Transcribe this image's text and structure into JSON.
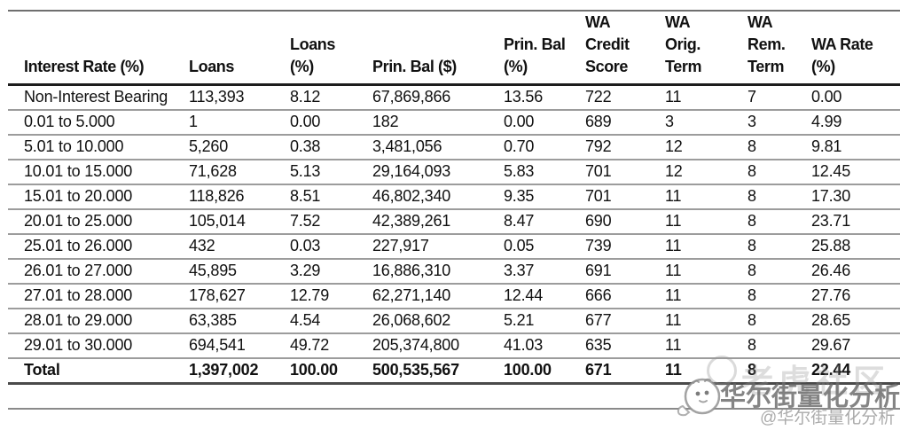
{
  "table": {
    "columns": [
      {
        "label": "Interest Rate (%)"
      },
      {
        "label": "Loans"
      },
      {
        "label": "Loans\n(%)"
      },
      {
        "label": "Prin. Bal ($)"
      },
      {
        "label": "Prin. Bal\n(%)"
      },
      {
        "label": "WA\nCredit\nScore"
      },
      {
        "label": "WA\nOrig.\nTerm"
      },
      {
        "label": "WA\nRem.\nTerm"
      },
      {
        "label": "WA Rate\n(%)"
      }
    ],
    "rows": [
      {
        "cells": [
          "Non-Interest Bearing",
          "113,393",
          "8.12",
          "67,869,866",
          "13.56",
          "722",
          "11",
          "7",
          "0.00"
        ]
      },
      {
        "cells": [
          "0.01 to 5.000",
          "1",
          "0.00",
          "182",
          "0.00",
          "689",
          "3",
          "3",
          "4.99"
        ]
      },
      {
        "cells": [
          "5.01 to 10.000",
          "5,260",
          "0.38",
          "3,481,056",
          "0.70",
          "792",
          "12",
          "8",
          "9.81"
        ]
      },
      {
        "cells": [
          "10.01 to 15.000",
          "71,628",
          "5.13",
          "29,164,093",
          "5.83",
          "701",
          "12",
          "8",
          "12.45"
        ]
      },
      {
        "cells": [
          "15.01 to 20.000",
          "118,826",
          "8.51",
          "46,802,340",
          "9.35",
          "701",
          "11",
          "8",
          "17.30"
        ]
      },
      {
        "cells": [
          "20.01 to 25.000",
          "105,014",
          "7.52",
          "42,389,261",
          "8.47",
          "690",
          "11",
          "8",
          "23.71"
        ]
      },
      {
        "cells": [
          "25.01 to 26.000",
          "432",
          "0.03",
          "227,917",
          "0.05",
          "739",
          "11",
          "8",
          "25.88"
        ]
      },
      {
        "cells": [
          "26.01 to 27.000",
          "45,895",
          "3.29",
          "16,886,310",
          "3.37",
          "691",
          "11",
          "8",
          "26.46"
        ]
      },
      {
        "cells": [
          "27.01 to 28.000",
          "178,627",
          "12.79",
          "62,271,140",
          "12.44",
          "666",
          "11",
          "8",
          "27.76"
        ]
      },
      {
        "cells": [
          "28.01 to 29.000",
          "63,385",
          "4.54",
          "26,068,602",
          "5.21",
          "677",
          "11",
          "8",
          "28.65"
        ]
      },
      {
        "cells": [
          "29.01 to 30.000",
          "694,541",
          "49.72",
          "205,374,800",
          "41.03",
          "635",
          "11",
          "8",
          "29.67"
        ]
      }
    ],
    "total_row": {
      "cells": [
        "Total",
        "1,397,002",
        "100.00",
        "500,535,567",
        "100.00",
        "671",
        "11",
        "8",
        "22.44"
      ]
    }
  },
  "watermark": {
    "main_text": "华尔街量化分析",
    "handle_text": "@华尔街量化分析",
    "faint_text": "老虎社区"
  },
  "colors": {
    "text": "#111111",
    "rule_heavy": "#1c1c1c",
    "rule_light": "#9c9c9c",
    "watermark_gray": "#696969"
  }
}
